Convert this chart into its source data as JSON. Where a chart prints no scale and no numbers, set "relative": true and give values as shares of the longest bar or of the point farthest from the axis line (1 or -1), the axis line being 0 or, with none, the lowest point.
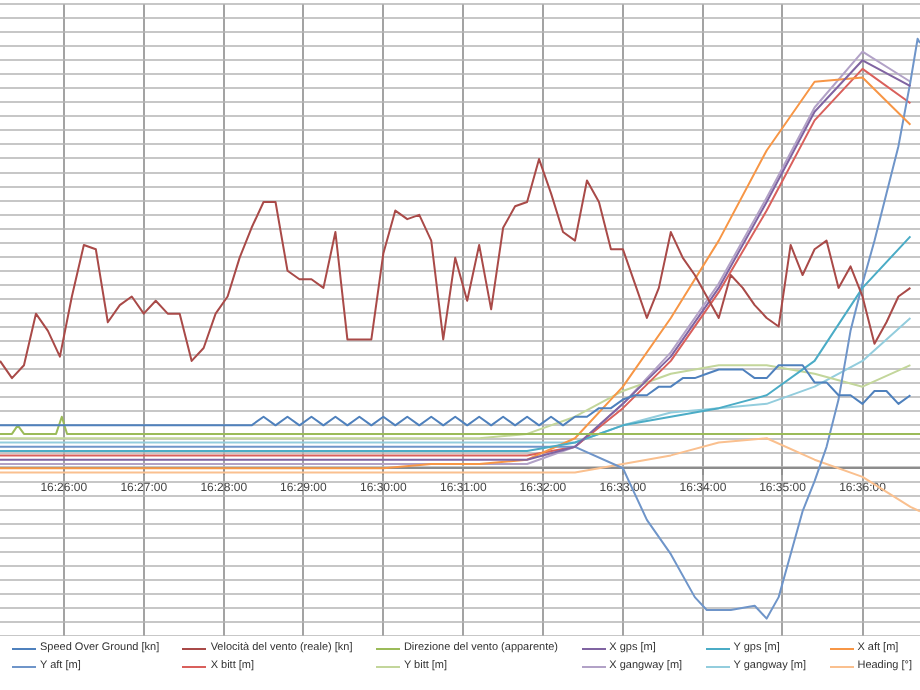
{
  "chart_data": {
    "type": "line",
    "relative": true,
    "grid": true,
    "legend": "bottom",
    "xlim": [
      16.42,
      16.612
    ],
    "xticks": [
      {
        "value": 16.4333,
        "label": "16:26:00"
      },
      {
        "value": 16.45,
        "label": "16:27:00"
      },
      {
        "value": 16.4667,
        "label": "16:28:00"
      },
      {
        "value": 16.4833,
        "label": "16:29:00"
      },
      {
        "value": 16.5,
        "label": "16:30:00"
      },
      {
        "value": 16.5167,
        "label": "16:31:00"
      },
      {
        "value": 16.5333,
        "label": "16:32:00"
      },
      {
        "value": 16.55,
        "label": "16:33:00"
      },
      {
        "value": 16.5667,
        "label": "16:34:00"
      },
      {
        "value": 16.5833,
        "label": "16:35:00"
      },
      {
        "value": 16.6,
        "label": "16:36:00"
      }
    ],
    "x": [
      16.42,
      16.4225,
      16.425,
      16.4275,
      16.43,
      16.4325,
      16.435,
      16.4375,
      16.44,
      16.4425,
      16.445,
      16.4475,
      16.45,
      16.4525,
      16.455,
      16.4575,
      16.46,
      16.4625,
      16.465,
      16.4675,
      16.47,
      16.4725,
      16.475,
      16.4775,
      16.48,
      16.4825,
      16.485,
      16.4875,
      16.49,
      16.4925,
      16.495,
      16.4975,
      16.5,
      16.5025,
      16.505,
      16.5075,
      16.51,
      16.5125,
      16.515,
      16.5175,
      16.52,
      16.5225,
      16.525,
      16.5275,
      16.53,
      16.5325,
      16.535,
      16.5375,
      16.54,
      16.5425,
      16.545,
      16.5475,
      16.55,
      16.5525,
      16.555,
      16.5575,
      16.56,
      16.5625,
      16.565,
      16.5675,
      16.57,
      16.5725,
      16.575,
      16.5775,
      16.58,
      16.5825,
      16.585,
      16.5875,
      16.59,
      16.5925,
      16.595,
      16.5975,
      16.6,
      16.6025,
      16.605,
      16.6075,
      16.61
    ],
    "series": [
      {
        "name": "Speed Over Ground [kn]",
        "color": "#4f81bd",
        "values": [
          0.1,
          0.1,
          0.1,
          0.1,
          0.1,
          0.1,
          0.1,
          0.1,
          0.1,
          0.1,
          0.1,
          0.1,
          0.1,
          0.1,
          0.1,
          0.1,
          0.1,
          0.1,
          0.1,
          0.1,
          0.1,
          0.1,
          0.12,
          0.1,
          0.12,
          0.1,
          0.12,
          0.1,
          0.12,
          0.1,
          0.12,
          0.1,
          0.12,
          0.1,
          0.12,
          0.1,
          0.12,
          0.1,
          0.12,
          0.1,
          0.12,
          0.1,
          0.12,
          0.1,
          0.12,
          0.1,
          0.12,
          0.1,
          0.12,
          0.12,
          0.14,
          0.14,
          0.16,
          0.17,
          0.17,
          0.19,
          0.19,
          0.21,
          0.21,
          0.22,
          0.23,
          0.23,
          0.23,
          0.21,
          0.21,
          0.24,
          0.24,
          0.24,
          0.2,
          0.2,
          0.17,
          0.17,
          0.15,
          0.18,
          0.18,
          0.15,
          0.17
        ]
      },
      {
        "name": "Velocità del vento (reale) [kn]",
        "color": "#a94a48",
        "values": [
          0.25,
          0.21,
          0.24,
          0.36,
          0.32,
          0.26,
          0.4,
          0.52,
          0.51,
          0.34,
          0.38,
          0.4,
          0.36,
          0.39,
          0.36,
          0.36,
          0.25,
          0.28,
          0.36,
          0.4,
          0.49,
          0.56,
          0.62,
          0.62,
          0.46,
          0.44,
          0.44,
          0.42,
          0.55,
          0.3,
          0.3,
          0.3,
          0.5,
          0.6,
          0.58,
          0.59,
          0.53,
          0.3,
          0.49,
          0.39,
          0.52,
          0.37,
          0.56,
          0.61,
          0.62,
          0.72,
          0.64,
          0.55,
          0.53,
          0.67,
          0.62,
          0.51,
          0.51,
          0.43,
          0.35,
          0.42,
          0.55,
          0.49,
          0.45,
          0.4,
          0.35,
          0.45,
          0.42,
          0.38,
          0.35,
          0.33,
          0.52,
          0.45,
          0.51,
          0.53,
          0.42,
          0.47,
          0.4,
          0.29,
          0.34,
          0.4,
          0.42
        ]
      },
      {
        "name": "Direzione del vento (apparente)",
        "color": "#9bbb59",
        "x": [
          16.42,
          16.4225,
          16.4237,
          16.425,
          16.4317,
          16.4329,
          16.434,
          16.5,
          16.53,
          16.56,
          16.6,
          16.612
        ],
        "values": [
          0.08,
          0.08,
          0.1,
          0.08,
          0.08,
          0.12,
          0.08,
          0.08,
          0.08,
          0.08,
          0.08,
          0.08
        ]
      },
      {
        "name": "X gps [m]",
        "color": "#8064a2",
        "x": [
          16.42,
          16.43,
          16.44,
          16.45,
          16.46,
          16.47,
          16.48,
          16.49,
          16.5,
          16.51,
          16.52,
          16.53,
          16.54,
          16.55,
          16.56,
          16.57,
          16.58,
          16.59,
          16.6,
          16.61
        ],
        "values": [
          0.02,
          0.02,
          0.02,
          0.02,
          0.02,
          0.02,
          0.02,
          0.02,
          0.02,
          0.02,
          0.02,
          0.02,
          0.05,
          0.15,
          0.26,
          0.42,
          0.62,
          0.83,
          0.95,
          0.89
        ]
      },
      {
        "name": "Y gps [m]",
        "color": "#4bacc6",
        "x": [
          16.42,
          16.43,
          16.44,
          16.45,
          16.46,
          16.47,
          16.48,
          16.49,
          16.5,
          16.51,
          16.52,
          16.53,
          16.54,
          16.55,
          16.56,
          16.57,
          16.58,
          16.59,
          16.6,
          16.61
        ],
        "values": [
          0.04,
          0.04,
          0.04,
          0.04,
          0.04,
          0.04,
          0.04,
          0.04,
          0.04,
          0.04,
          0.04,
          0.04,
          0.06,
          0.1,
          0.12,
          0.14,
          0.17,
          0.25,
          0.42,
          0.54
        ]
      },
      {
        "name": "X aft [m]",
        "color": "#f79646",
        "x": [
          16.42,
          16.43,
          16.44,
          16.45,
          16.46,
          16.47,
          16.48,
          16.49,
          16.5,
          16.51,
          16.52,
          16.53,
          16.54,
          16.55,
          16.56,
          16.57,
          16.58,
          16.59,
          16.6,
          16.61
        ],
        "values": [
          0,
          0,
          0,
          0,
          0,
          0,
          0,
          0,
          0,
          0.01,
          0.01,
          0.02,
          0.07,
          0.19,
          0.35,
          0.53,
          0.74,
          0.9,
          0.91,
          0.8
        ]
      },
      {
        "name": "Y aft [m]",
        "color": "#6f95c9",
        "x": [
          16.42,
          16.53,
          16.54,
          16.55,
          16.5525,
          16.555,
          16.56,
          16.565,
          16.5675,
          16.5725,
          16.5775,
          16.58,
          16.5825,
          16.585,
          16.5875,
          16.59,
          16.5925,
          16.595,
          16.5975,
          16.6,
          16.6025,
          16.605,
          16.6075,
          16.61,
          16.6115,
          16.612
        ],
        "values": [
          0.05,
          0.05,
          0.05,
          0,
          -0.06,
          -0.12,
          -0.2,
          -0.3,
          -0.33,
          -0.33,
          -0.32,
          -0.35,
          -0.3,
          -0.2,
          -0.1,
          -0.03,
          0.05,
          0.16,
          0.32,
          0.43,
          0.53,
          0.64,
          0.75,
          0.9,
          1,
          0.99
        ]
      },
      {
        "name": "X bitt [m]",
        "color": "#d9605c",
        "x": [
          16.42,
          16.43,
          16.44,
          16.45,
          16.46,
          16.47,
          16.48,
          16.49,
          16.5,
          16.51,
          16.52,
          16.53,
          16.54,
          16.55,
          16.56,
          16.57,
          16.58,
          16.59,
          16.6,
          16.61
        ],
        "values": [
          0.03,
          0.03,
          0.03,
          0.03,
          0.03,
          0.03,
          0.03,
          0.03,
          0.03,
          0.03,
          0.03,
          0.03,
          0.05,
          0.14,
          0.25,
          0.41,
          0.6,
          0.81,
          0.93,
          0.85
        ]
      },
      {
        "name": "Y bitt [m]",
        "color": "#c3d69b",
        "x": [
          16.42,
          16.43,
          16.44,
          16.45,
          16.46,
          16.47,
          16.48,
          16.49,
          16.5,
          16.51,
          16.52,
          16.53,
          16.54,
          16.55,
          16.56,
          16.57,
          16.58,
          16.59,
          16.6,
          16.61
        ],
        "values": [
          0.07,
          0.07,
          0.07,
          0.07,
          0.07,
          0.07,
          0.07,
          0.07,
          0.07,
          0.07,
          0.07,
          0.08,
          0.12,
          0.18,
          0.22,
          0.24,
          0.24,
          0.22,
          0.19,
          0.24
        ]
      },
      {
        "name": "X gangway [m]",
        "color": "#b2a2c7",
        "x": [
          16.42,
          16.43,
          16.44,
          16.45,
          16.46,
          16.47,
          16.48,
          16.49,
          16.5,
          16.51,
          16.52,
          16.53,
          16.54,
          16.55,
          16.56,
          16.57,
          16.58,
          16.59,
          16.6,
          16.61
        ],
        "values": [
          0.01,
          0.01,
          0.01,
          0.01,
          0.01,
          0.01,
          0.01,
          0.01,
          0.01,
          0.01,
          0.01,
          0.01,
          0.05,
          0.15,
          0.27,
          0.43,
          0.63,
          0.84,
          0.97,
          0.9
        ]
      },
      {
        "name": "Y gangway [m]",
        "color": "#93cddd",
        "x": [
          16.42,
          16.43,
          16.44,
          16.45,
          16.46,
          16.47,
          16.48,
          16.49,
          16.5,
          16.51,
          16.52,
          16.53,
          16.54,
          16.55,
          16.56,
          16.57,
          16.58,
          16.59,
          16.6,
          16.61
        ],
        "values": [
          0.06,
          0.06,
          0.06,
          0.06,
          0.06,
          0.06,
          0.06,
          0.06,
          0.06,
          0.06,
          0.06,
          0.06,
          0.06,
          0.1,
          0.13,
          0.14,
          0.15,
          0.19,
          0.25,
          0.35
        ]
      },
      {
        "name": "Heading [°]",
        "color": "#fac08f",
        "x": [
          16.42,
          16.43,
          16.44,
          16.45,
          16.46,
          16.47,
          16.48,
          16.49,
          16.5,
          16.51,
          16.52,
          16.53,
          16.54,
          16.55,
          16.56,
          16.57,
          16.58,
          16.59,
          16.6,
          16.61,
          16.612
        ],
        "values": [
          -0.01,
          -0.01,
          -0.01,
          -0.01,
          -0.01,
          -0.01,
          -0.01,
          -0.01,
          -0.01,
          -0.01,
          -0.01,
          -0.01,
          -0.01,
          0.01,
          0.03,
          0.06,
          0.07,
          0.02,
          -0.02,
          -0.09,
          -0.1
        ]
      }
    ]
  }
}
